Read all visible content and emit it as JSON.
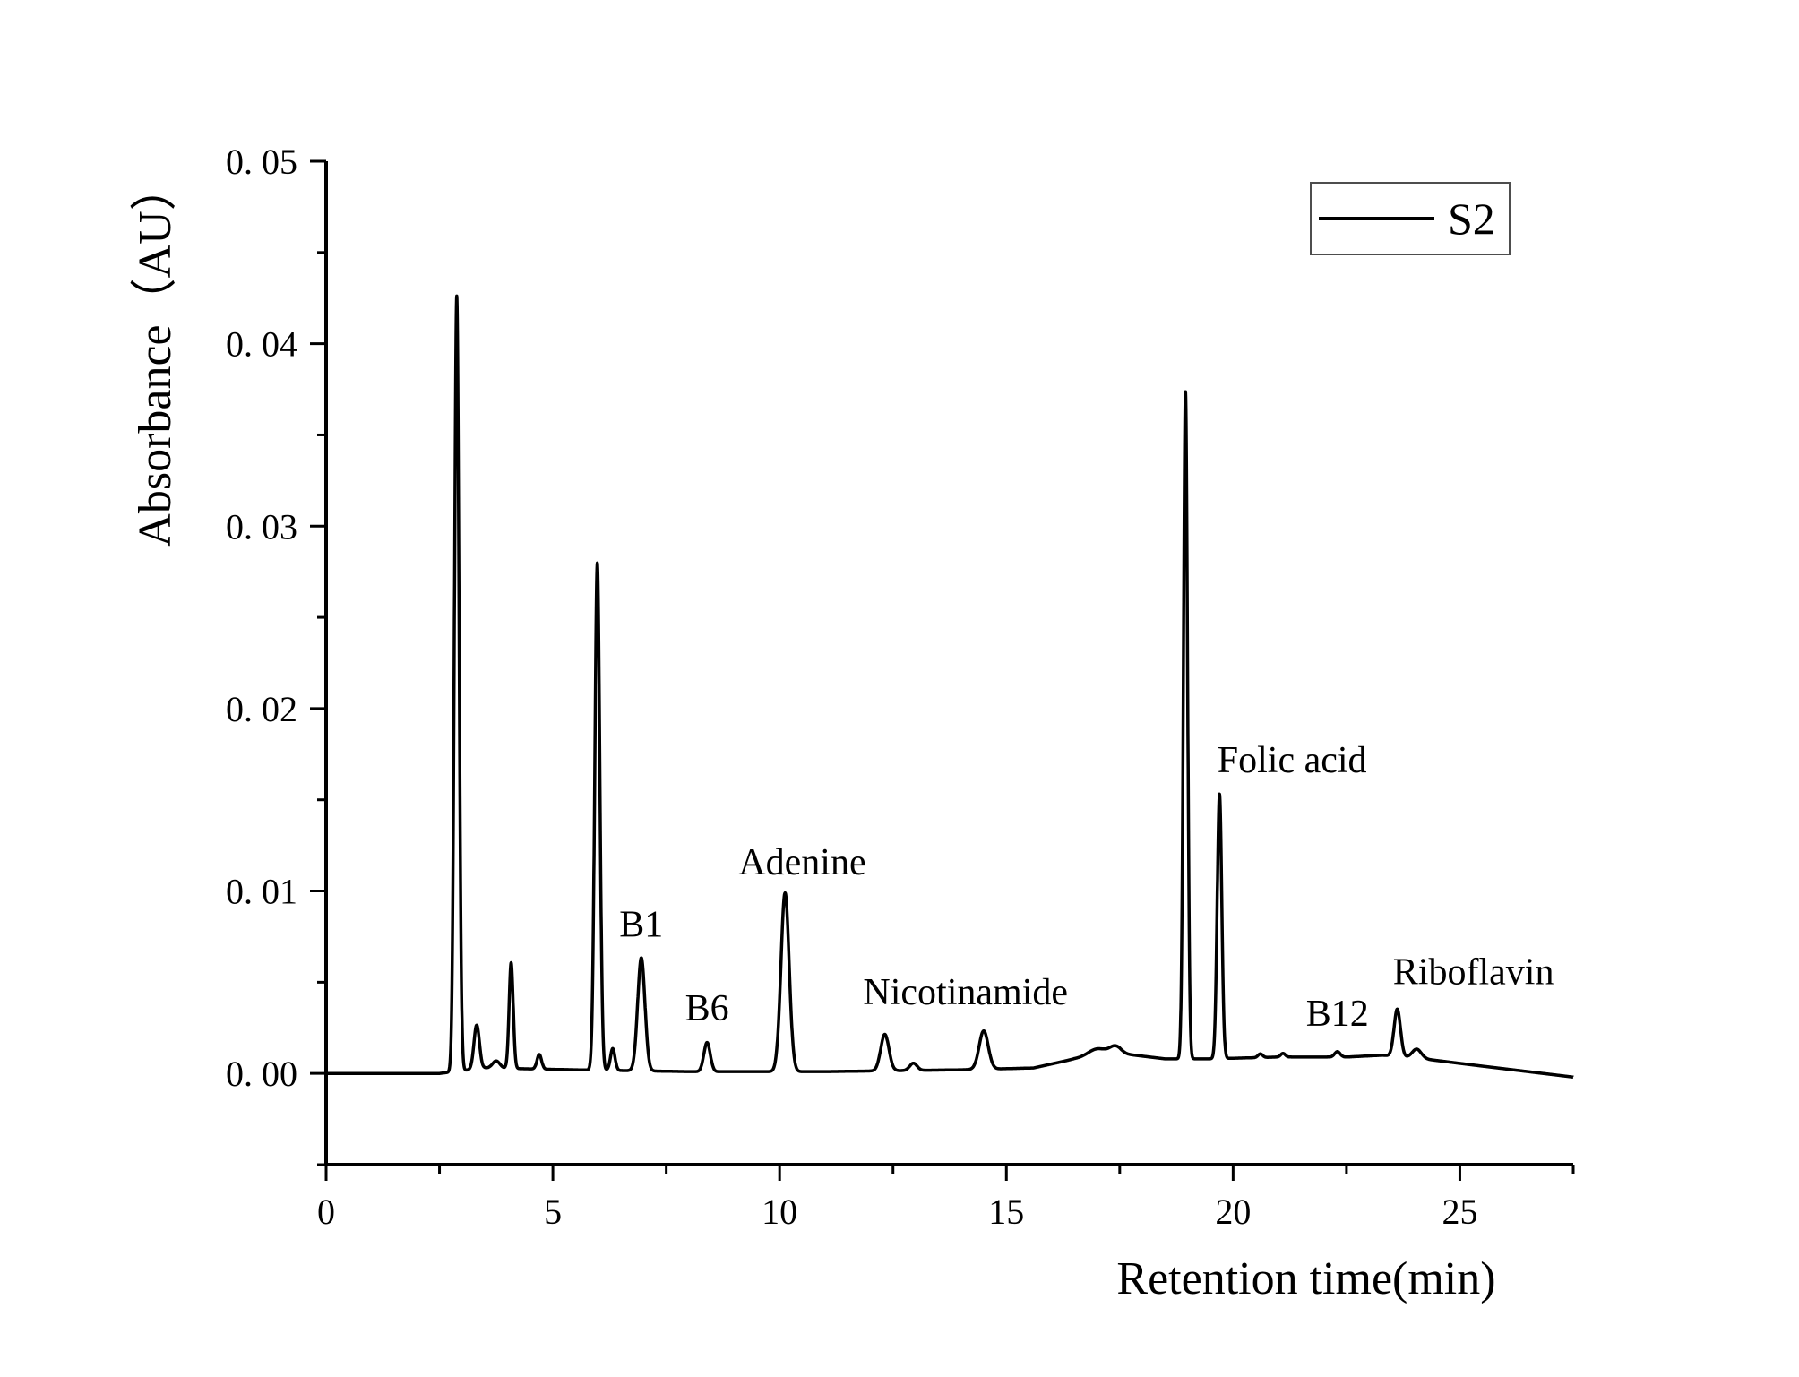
{
  "chart_data": {
    "type": "line",
    "xlabel": "Retention time(min)",
    "ylabel": "Absorbance（AU）",
    "xlim": [
      0,
      27.5
    ],
    "ylim": [
      -0.005,
      0.05
    ],
    "x_ticks": [
      0,
      5,
      10,
      15,
      20,
      25
    ],
    "x_tick_labels": [
      "0",
      "5",
      "10",
      "15",
      "20",
      "25"
    ],
    "y_ticks": [
      0,
      0.01,
      0.02,
      0.03,
      0.04,
      0.05
    ],
    "y_tick_labels": [
      "0. 00",
      "0. 01",
      "0. 02",
      "0. 03",
      "0. 04",
      "0. 05"
    ],
    "grid": false,
    "legend": {
      "placement": "top-right",
      "entries": [
        "S2"
      ]
    },
    "series": [
      {
        "name": "S2",
        "color": "#000000",
        "baseline": [
          [
            0,
            0
          ],
          [
            2.5,
            0
          ],
          [
            3.5,
            0.0003
          ],
          [
            5.5,
            0.0002
          ],
          [
            8,
            0.0001
          ],
          [
            11,
            0.0001
          ],
          [
            14,
            0.0002
          ],
          [
            15.6,
            0.0003
          ],
          [
            16.5,
            0.0008
          ],
          [
            17.5,
            0.0011
          ],
          [
            18.5,
            0.0008
          ],
          [
            19.5,
            0.0008
          ],
          [
            21,
            0.0009
          ],
          [
            22.5,
            0.0009
          ],
          [
            23.3,
            0.001
          ],
          [
            24.2,
            0.0008
          ],
          [
            25.5,
            0.0004
          ],
          [
            26.5,
            0.0001
          ],
          [
            27.5,
            -0.0002
          ]
        ],
        "peaks": [
          {
            "rt": 2.88,
            "height": 0.0425,
            "width": 0.05
          },
          {
            "rt": 3.32,
            "height": 0.0024,
            "width": 0.06
          },
          {
            "rt": 3.75,
            "height": 0.0004,
            "width": 0.08
          },
          {
            "rt": 4.08,
            "height": 0.0058,
            "width": 0.045
          },
          {
            "rt": 4.7,
            "height": 0.0008,
            "width": 0.05
          },
          {
            "rt": 5.98,
            "height": 0.0278,
            "width": 0.055
          },
          {
            "rt": 6.32,
            "height": 0.0012,
            "width": 0.05
          },
          {
            "rt": 6.95,
            "height": 0.0062,
            "width": 0.08
          },
          {
            "rt": 8.4,
            "height": 0.0016,
            "width": 0.07
          },
          {
            "rt": 10.12,
            "height": 0.0098,
            "width": 0.09
          },
          {
            "rt": 12.32,
            "height": 0.002,
            "width": 0.09
          },
          {
            "rt": 12.95,
            "height": 0.0004,
            "width": 0.08
          },
          {
            "rt": 14.5,
            "height": 0.0021,
            "width": 0.1
          },
          {
            "rt": 17.0,
            "height": 0.0004,
            "width": 0.2
          },
          {
            "rt": 17.4,
            "height": 0.0004,
            "width": 0.12
          },
          {
            "rt": 18.95,
            "height": 0.0366,
            "width": 0.045
          },
          {
            "rt": 19.7,
            "height": 0.0145,
            "width": 0.05
          },
          {
            "rt": 20.6,
            "height": 0.0002,
            "width": 0.05
          },
          {
            "rt": 21.1,
            "height": 0.0002,
            "width": 0.05
          },
          {
            "rt": 22.3,
            "height": 0.0003,
            "width": 0.06
          },
          {
            "rt": 23.62,
            "height": 0.0026,
            "width": 0.07
          },
          {
            "rt": 24.05,
            "height": 0.0005,
            "width": 0.1
          }
        ]
      }
    ],
    "annotations": [
      {
        "text": "B1",
        "x": 6.95,
        "y": 0.0075
      },
      {
        "text": "B6",
        "x": 8.4,
        "y": 0.0029
      },
      {
        "text": "Adenine",
        "x": 10.5,
        "y": 0.0109
      },
      {
        "text": "Nicotinamide",
        "x": 14.1,
        "y": 0.0038
      },
      {
        "text": "Folic acid",
        "x": 21.3,
        "y": 0.0165
      },
      {
        "text": "B12",
        "x": 22.3,
        "y": 0.0026
      },
      {
        "text": "Riboflavin",
        "x": 25.3,
        "y": 0.0049
      }
    ]
  }
}
